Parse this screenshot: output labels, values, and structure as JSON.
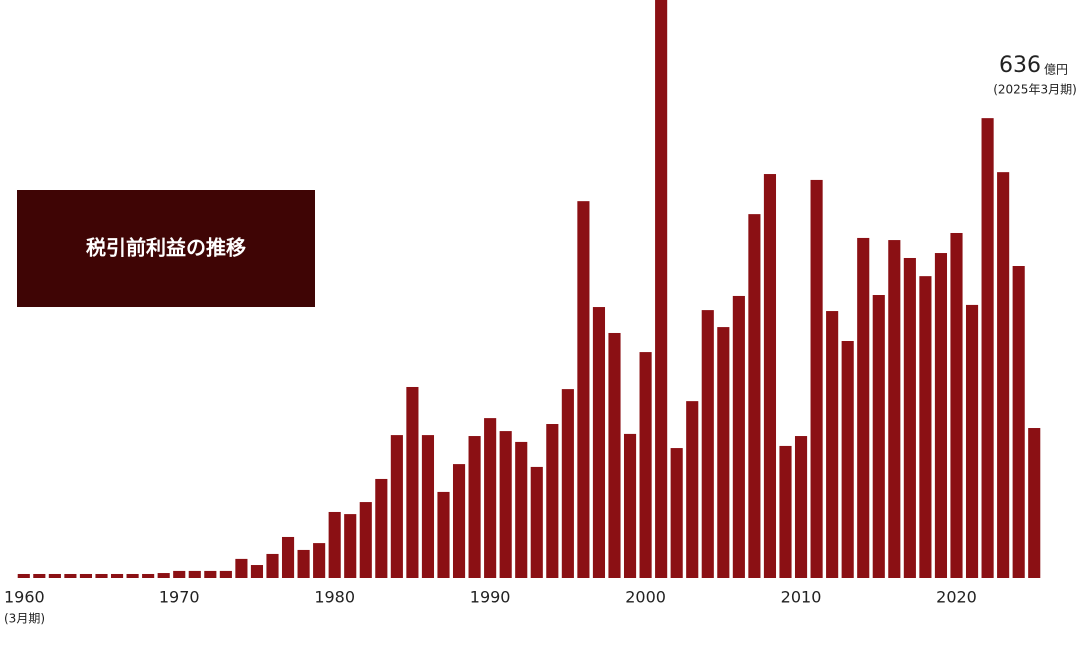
{
  "chart_data": {
    "type": "bar",
    "title": "税引前利益の推移",
    "categories": [
      "1960",
      null,
      null,
      null,
      null,
      null,
      null,
      null,
      null,
      null,
      "1970",
      null,
      null,
      null,
      null,
      null,
      null,
      null,
      null,
      null,
      "1980",
      null,
      null,
      null,
      null,
      null,
      null,
      null,
      null,
      null,
      "1990",
      null,
      null,
      null,
      null,
      null,
      null,
      null,
      null,
      null,
      "2000",
      null,
      null,
      null,
      null,
      null,
      null,
      null,
      null,
      null,
      "2010",
      null,
      null,
      null,
      null,
      null,
      null,
      null,
      null,
      null,
      "2020",
      null,
      null,
      null,
      null,
      null
    ],
    "period_note": "(3月期)",
    "values": [
      17,
      17,
      17,
      17,
      17,
      17,
      17,
      17,
      17,
      21,
      30,
      30,
      30,
      30,
      81,
      55,
      102,
      174,
      119,
      148,
      280,
      271,
      322,
      420,
      606,
      810,
      606,
      365,
      483,
      602,
      678,
      623,
      577,
      471,
      653,
      801,
      1598,
      1149,
      1039,
      611,
      958,
      2502,
      551,
      750,
      1136,
      1064,
      1196,
      1543,
      1713,
      560,
      602,
      1688,
      1132,
      1005,
      1442,
      1200,
      1433,
      1357,
      1280,
      1378,
      1463,
      1158,
      1950,
      1721,
      1323,
      636
    ],
    "color": "#8b1014",
    "ylim": [
      0,
      2451
    ],
    "annotation_unit": "億円",
    "annotation_period": "(2025年3月期)"
  }
}
